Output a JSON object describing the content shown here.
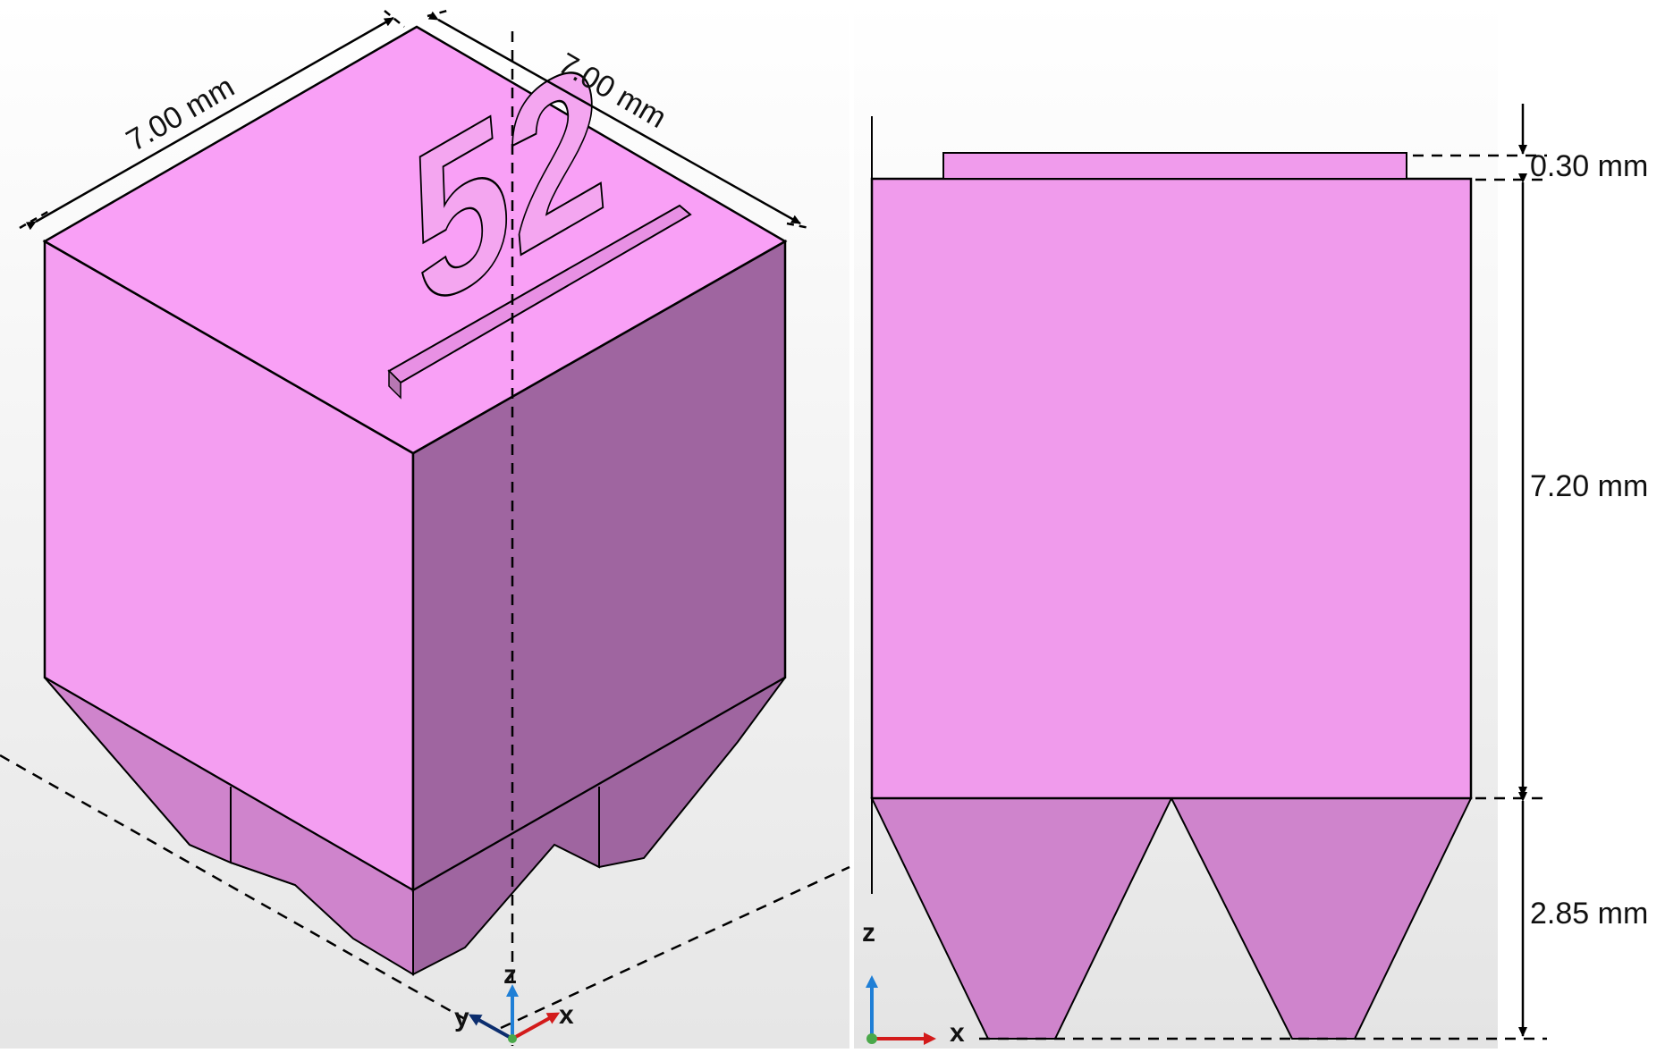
{
  "isometric_view": {
    "engraved_number": "52",
    "dimensions": {
      "width_label": "7.00 mm",
      "depth_label": "7.00 mm"
    },
    "axes": {
      "z_label": "z",
      "y_label": "y",
      "x_label": "x"
    }
  },
  "front_view": {
    "dimensions": {
      "emboss_label": "0.30 mm",
      "body_label": "7.20 mm",
      "support_label": "2.85 mm"
    },
    "axes": {
      "z_label": "z",
      "x_label": "x"
    }
  },
  "colors": {
    "top_face": "#f9a0f6",
    "left_face": "#f49ef1",
    "right_face": "#9f65a0",
    "support_face": "#cf84cc",
    "front_body": "#f09bec",
    "axis_z": "#1f7fd6",
    "axis_x": "#d31b1b",
    "axis_y": "#0c2e6e"
  }
}
